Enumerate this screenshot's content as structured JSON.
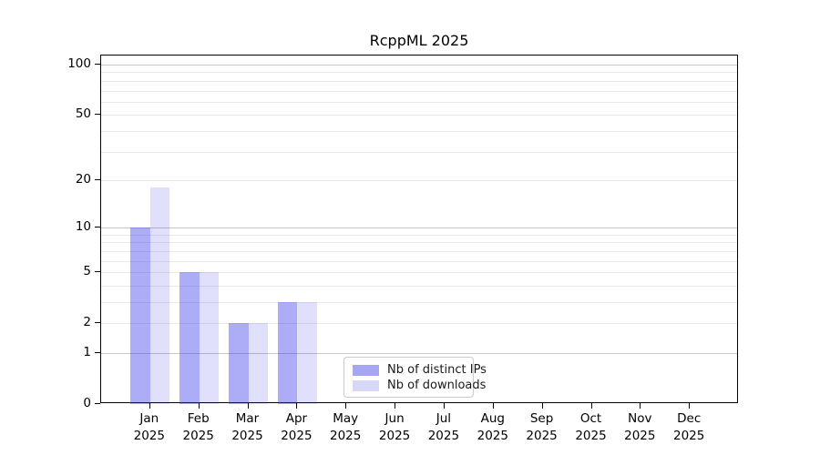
{
  "title": "RcppML 2025",
  "chart_data": {
    "type": "bar",
    "title": "RcppML 2025",
    "categories": [
      "Jan",
      "Feb",
      "Mar",
      "Apr",
      "May",
      "Jun",
      "Jul",
      "Aug",
      "Sep",
      "Oct",
      "Nov",
      "Dec"
    ],
    "category_year": "2025",
    "series": [
      {
        "name": "Nb of distinct IPs",
        "values": [
          10,
          5,
          2,
          3,
          0,
          0,
          0,
          0,
          0,
          0,
          0,
          0
        ],
        "fill": "rgba(60,60,235,0.42)",
        "swatch": "#a6a6f1"
      },
      {
        "name": "Nb of downloads",
        "values": [
          18,
          5,
          2,
          3,
          0,
          0,
          0,
          0,
          0,
          0,
          0,
          0
        ],
        "fill": "rgba(60,60,235,0.16)",
        "swatch": "#d8d8f8"
      }
    ],
    "yscale": "log10(value+1)",
    "ylim": [
      0,
      100
    ],
    "yticks": [
      100,
      50,
      20,
      10,
      5,
      2,
      1,
      0
    ],
    "major_gridlines": [
      1,
      10,
      100
    ],
    "minor_gridlines": [
      2,
      3,
      4,
      5,
      6,
      7,
      8,
      9,
      20,
      30,
      40,
      50,
      60,
      70,
      80,
      90
    ],
    "legend_position": "lower-center-left-inside",
    "colors": {
      "major_grid": "#c6c6c6",
      "minor_grid": "#e9e9e9",
      "spine": "#000000",
      "text": "#1a1a1a"
    }
  }
}
